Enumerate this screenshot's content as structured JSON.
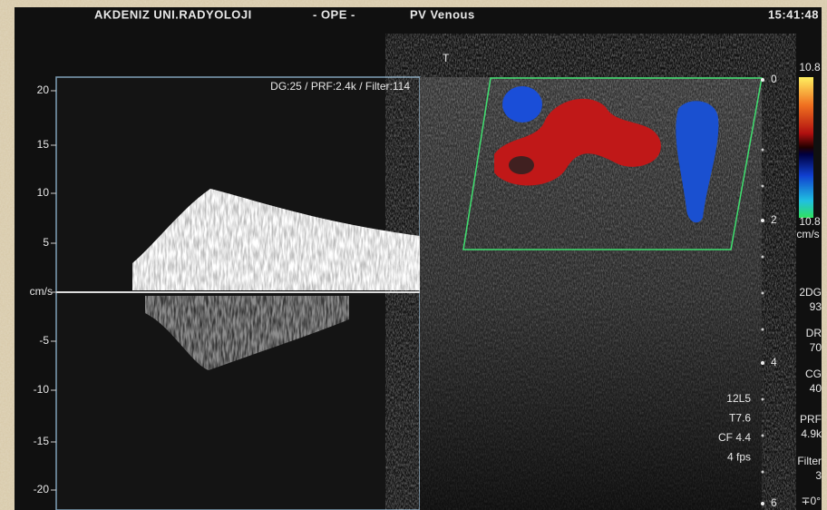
{
  "header": {
    "site": "AKDENIZ UNI.RADYOLOJI",
    "mode": "- OPE -",
    "preset": "PV Venous",
    "time": "15:41:48"
  },
  "spectral": {
    "params": "DG:25 /   PRF:2.4k   / Filter:114",
    "scale_labels": [
      "20",
      "15",
      "10",
      "5",
      "cm/s",
      "-5",
      "-10",
      "-15",
      "-20"
    ]
  },
  "image": {
    "marker": "T",
    "depth_labels": [
      "0",
      "2",
      "4",
      "6"
    ],
    "color_scale": {
      "top": "10.8",
      "bottom": "10.8",
      "unit": "cm/s"
    },
    "probe": [
      "12L5",
      "T7.6",
      "CF 4.4",
      "4 fps"
    ],
    "settings": [
      {
        "label": "2DG",
        "value": "93"
      },
      {
        "label": "DR",
        "value": "70"
      },
      {
        "label": "CG",
        "value": "40"
      },
      {
        "label": "PRF",
        "value": "4.9k"
      },
      {
        "label": "Filter",
        "value": "3"
      }
    ],
    "angle": "∓0°"
  }
}
